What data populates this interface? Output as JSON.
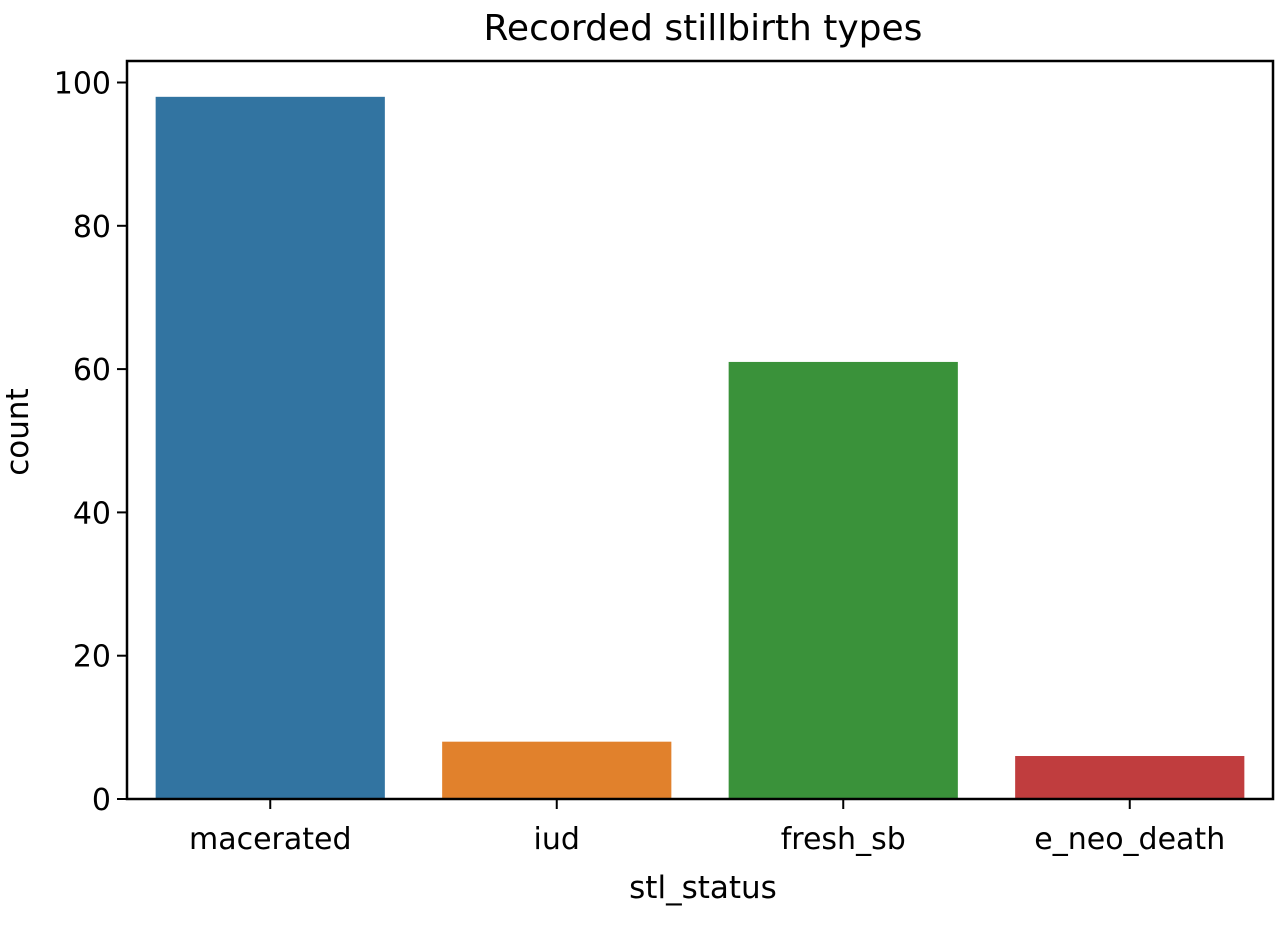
{
  "chart_data": {
    "type": "bar",
    "title": "Recorded stillbirth types",
    "xlabel": "stl_status",
    "ylabel": "count",
    "categories": [
      "macerated",
      "iud",
      "fresh_sb",
      "e_neo_death"
    ],
    "values": [
      98,
      8,
      61,
      6
    ],
    "colors": [
      "#3274a1",
      "#e1812c",
      "#3a923a",
      "#c03d3e"
    ],
    "ylim": [
      0,
      103
    ],
    "yticks": [
      0,
      20,
      40,
      60,
      80,
      100
    ],
    "ytick_labels": [
      "0",
      "20",
      "40",
      "60",
      "80",
      "100"
    ],
    "grid": false,
    "legend": "none"
  }
}
